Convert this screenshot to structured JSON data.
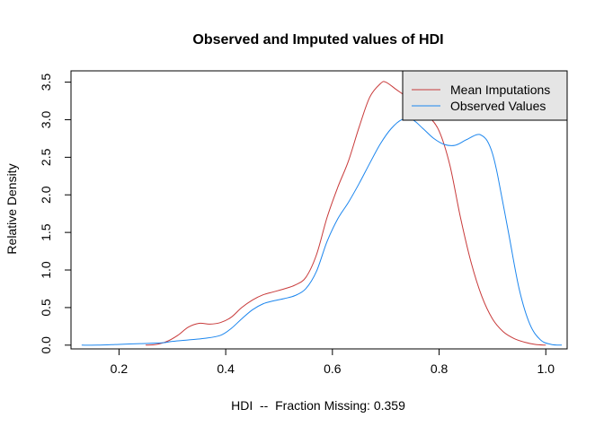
{
  "chart_data": {
    "type": "line",
    "title": "Observed and Imputed values of HDI",
    "xlabel": "HDI  --  Fraction Missing: 0.359",
    "ylabel": "Relative Density",
    "xlim": [
      0.11,
      1.04
    ],
    "ylim": [
      -0.05,
      3.65
    ],
    "x_ticks": [
      0.2,
      0.4,
      0.6,
      0.8,
      1.0
    ],
    "x_tick_labels": [
      "0.2",
      "0.4",
      "0.6",
      "0.8",
      "1.0"
    ],
    "y_ticks": [
      0.0,
      0.5,
      1.0,
      1.5,
      2.0,
      2.5,
      3.0,
      3.5
    ],
    "y_tick_labels": [
      "0.0",
      "0.5",
      "1.0",
      "1.5",
      "2.0",
      "2.5",
      "3.0",
      "3.5"
    ],
    "grid": false,
    "legend_position": "top-right",
    "series": [
      {
        "name": "Mean Imputations",
        "color": "#c83a3a",
        "x": [
          0.25,
          0.27,
          0.29,
          0.31,
          0.33,
          0.35,
          0.37,
          0.39,
          0.41,
          0.43,
          0.45,
          0.47,
          0.49,
          0.51,
          0.53,
          0.55,
          0.57,
          0.59,
          0.61,
          0.63,
          0.65,
          0.67,
          0.69,
          0.7,
          0.72,
          0.74,
          0.76,
          0.78,
          0.8,
          0.82,
          0.84,
          0.86,
          0.88,
          0.9,
          0.92,
          0.94,
          0.96,
          0.98,
          1.0
        ],
        "values": [
          0.0,
          0.01,
          0.05,
          0.13,
          0.24,
          0.29,
          0.28,
          0.3,
          0.37,
          0.5,
          0.6,
          0.67,
          0.71,
          0.75,
          0.8,
          0.9,
          1.2,
          1.7,
          2.1,
          2.45,
          2.9,
          3.3,
          3.48,
          3.5,
          3.4,
          3.3,
          3.2,
          3.05,
          2.85,
          2.4,
          1.7,
          1.1,
          0.65,
          0.35,
          0.18,
          0.09,
          0.04,
          0.01,
          0.0
        ]
      },
      {
        "name": "Observed Values",
        "color": "#1c86ee",
        "x": [
          0.13,
          0.16,
          0.2,
          0.24,
          0.28,
          0.3,
          0.33,
          0.36,
          0.39,
          0.41,
          0.43,
          0.45,
          0.47,
          0.49,
          0.51,
          0.53,
          0.55,
          0.57,
          0.59,
          0.61,
          0.63,
          0.65,
          0.67,
          0.69,
          0.71,
          0.73,
          0.75,
          0.77,
          0.79,
          0.81,
          0.83,
          0.85,
          0.87,
          0.88,
          0.89,
          0.9,
          0.91,
          0.93,
          0.95,
          0.97,
          0.99,
          1.01,
          1.03
        ],
        "values": [
          0.0,
          0.0,
          0.01,
          0.02,
          0.03,
          0.05,
          0.07,
          0.09,
          0.13,
          0.22,
          0.35,
          0.47,
          0.55,
          0.59,
          0.62,
          0.66,
          0.75,
          0.98,
          1.38,
          1.68,
          1.9,
          2.15,
          2.42,
          2.68,
          2.88,
          3.0,
          3.0,
          2.88,
          2.75,
          2.67,
          2.66,
          2.73,
          2.8,
          2.79,
          2.72,
          2.55,
          2.25,
          1.5,
          0.75,
          0.28,
          0.07,
          0.01,
          0.0
        ]
      }
    ]
  }
}
